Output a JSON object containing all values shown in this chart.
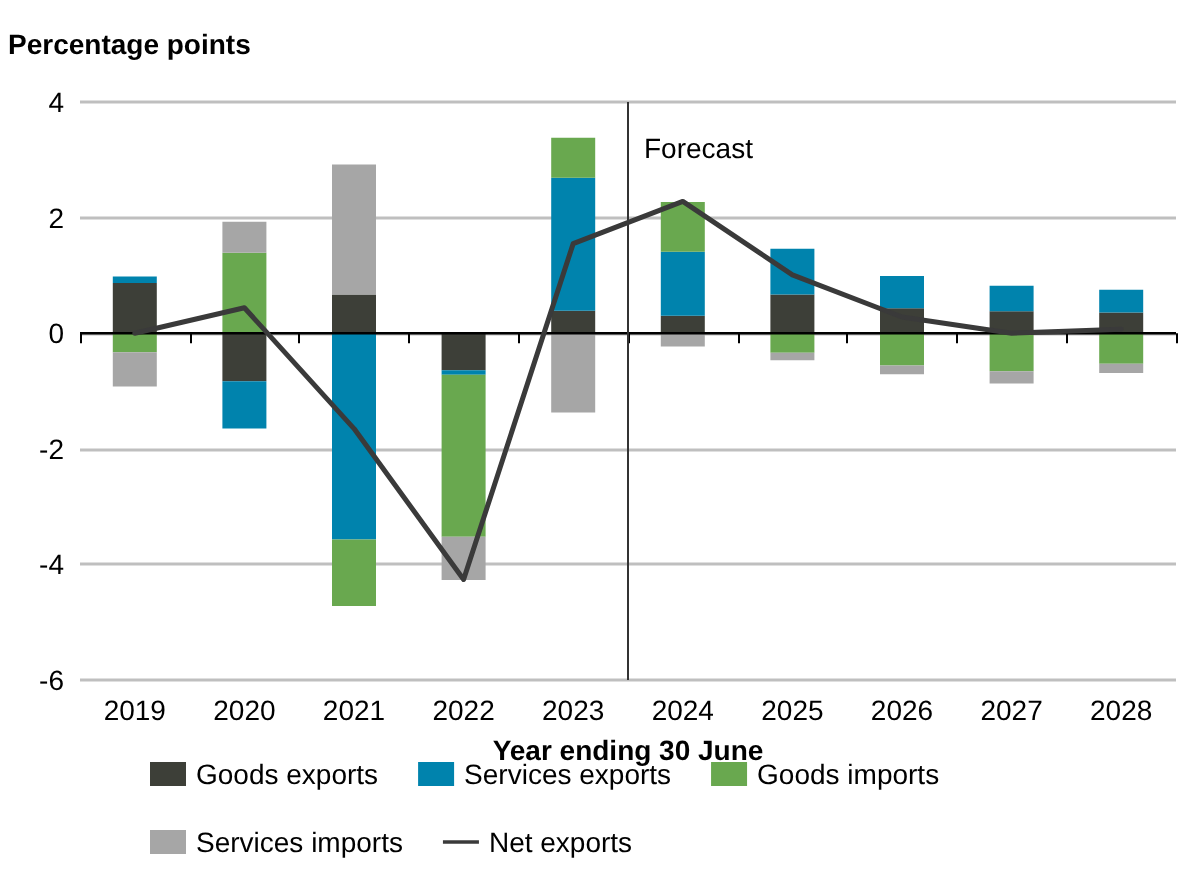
{
  "chart_data": {
    "type": "bar",
    "stacked": true,
    "ylabel": "Percentage points",
    "xlabel": "Year ending 30 June",
    "x": [
      2019,
      2020,
      2021,
      2022,
      2023,
      2024,
      2025,
      2026,
      2027,
      2028
    ],
    "xlim": [
      2018.5,
      2028.5
    ],
    "xticks": [
      2019,
      2020,
      2021,
      2022,
      2023,
      2024,
      2025,
      2026,
      2027,
      2028
    ],
    "ylim": [
      -6,
      4
    ],
    "yticks": [
      -6,
      -4,
      -2,
      0,
      2,
      4
    ],
    "grid": "y",
    "legend": "bottom",
    "marker": "none",
    "line_style": "solid",
    "series": [
      {
        "name": "Goods exports",
        "color": "#3d3f38",
        "values": [
          0.87,
          -0.83,
          0.67,
          -0.64,
          0.39,
          0.3,
          0.67,
          0.43,
          0.38,
          0.36
        ]
      },
      {
        "name": "Services exports",
        "color": "#0083ad",
        "values": [
          0.11,
          -0.82,
          -3.57,
          -0.08,
          2.3,
          1.11,
          0.79,
          0.56,
          0.44,
          0.39
        ]
      },
      {
        "name": "Goods imports",
        "color": "#69a84f",
        "values": [
          -0.33,
          1.39,
          -1.15,
          -2.8,
          0.69,
          0.86,
          -0.34,
          -0.56,
          -0.66,
          -0.53
        ]
      },
      {
        "name": "Services imports",
        "color": "#a6a6a6",
        "values": [
          -0.59,
          0.54,
          2.25,
          -0.75,
          -1.37,
          -0.23,
          -0.13,
          -0.15,
          -0.21,
          -0.16
        ]
      },
      {
        "name": "Net exports",
        "type": "line",
        "color": "#3a3a3a",
        "values": [
          0.0,
          0.44,
          -1.65,
          -4.26,
          1.55,
          2.28,
          1.01,
          0.28,
          0.0,
          0.07
        ]
      }
    ],
    "ref_lines": [
      {
        "axis": "x",
        "value": 2023.5,
        "label": "Forecast",
        "color": "#333333",
        "line_style": "solid"
      }
    ]
  }
}
